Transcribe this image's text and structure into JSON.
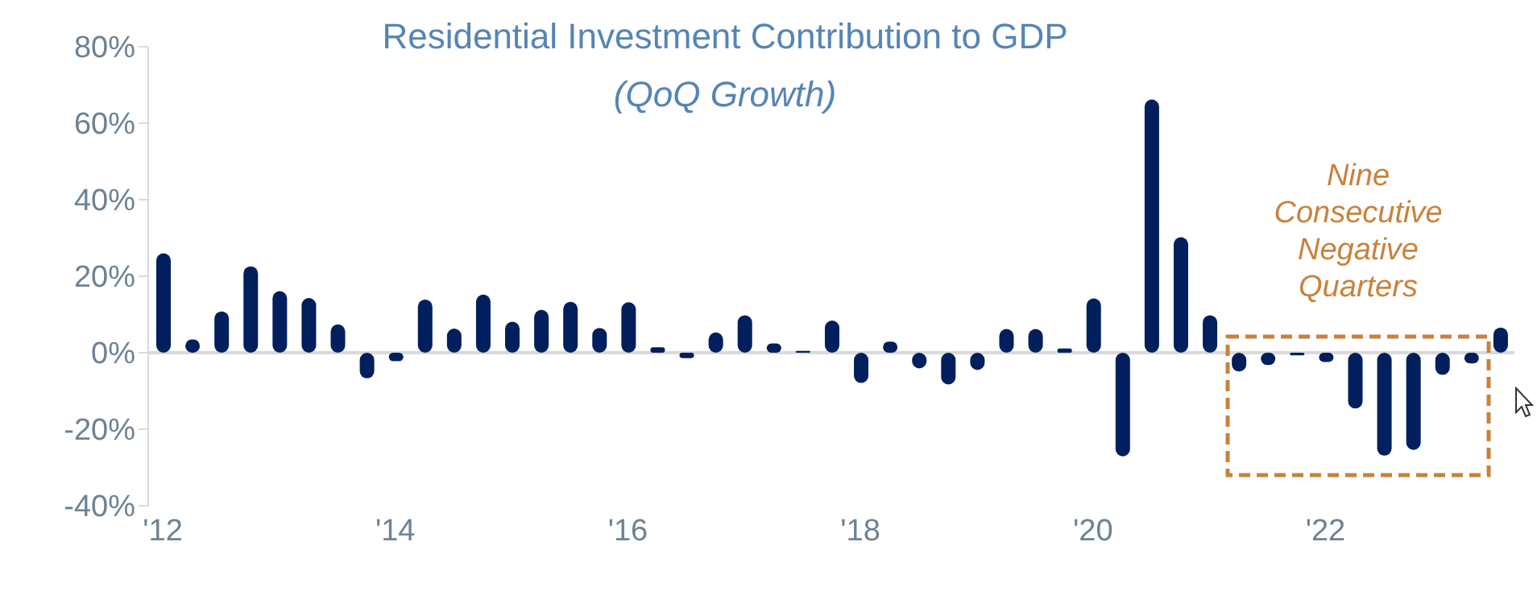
{
  "chart_data": {
    "type": "bar",
    "title": "Residential Investment Contribution to GDP",
    "subtitle": "(QoQ Growth)",
    "annotations": [
      "Nine Consecutive Negative Quarters"
    ],
    "categories": [
      "'12",
      null,
      null,
      null,
      null,
      null,
      null,
      null,
      "'14",
      null,
      null,
      null,
      null,
      null,
      null,
      null,
      "'16",
      null,
      null,
      null,
      null,
      null,
      null,
      null,
      "'18",
      null,
      null,
      null,
      null,
      null,
      null,
      null,
      "'20",
      null,
      null,
      null,
      null,
      null,
      null,
      null,
      "'22",
      null,
      null,
      null,
      null,
      null,
      null
    ],
    "values": [
      26,
      3.5,
      10.8,
      22.6,
      16.1,
      14.3,
      7.4,
      -6.7,
      -2.2,
      13.9,
      6.3,
      15.2,
      8.1,
      11.2,
      13.3,
      6.5,
      13.2,
      1.4,
      -1.4,
      5.3,
      9.8,
      2.4,
      0.5,
      8.4,
      -7.9,
      2.9,
      -4.1,
      -8.3,
      -4.5,
      6.2,
      6.2,
      1.1,
      14.2,
      -27.1,
      66.2,
      30.2,
      9.8,
      -4.9,
      -3.2,
      -0.7,
      -2.4,
      -14.6,
      -26.9,
      -25.4,
      -5.8,
      -2.8,
      6.6
    ],
    "color": "#001f5c",
    "ylim": [
      -40,
      80
    ],
    "yticks": [
      {
        "value": -40,
        "label": "-40%"
      },
      {
        "value": -20,
        "label": "-20%"
      },
      {
        "value": 0,
        "label": "0%"
      },
      {
        "value": 20,
        "label": "20%"
      },
      {
        "value": 40,
        "label": "40%"
      },
      {
        "value": 60,
        "label": "60%"
      },
      {
        "value": 80,
        "label": "80%"
      }
    ],
    "ref_lines": [
      {
        "axis": "y",
        "value": 0,
        "color": "#d9d9d9"
      }
    ],
    "grid": false
  }
}
